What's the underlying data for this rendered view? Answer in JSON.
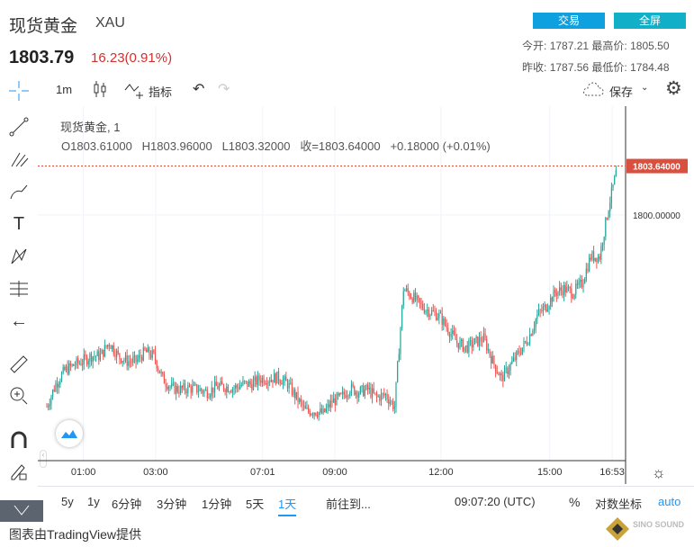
{
  "header": {
    "title": "现货黄金",
    "symbol": "XAU",
    "price": "1803.79",
    "change": "16.23(0.91%)",
    "trade_label": "交易",
    "fullscreen_label": "全屏",
    "stats": {
      "open_label": "今开:",
      "open": "1787.21",
      "high_label": "最高价:",
      "high": "1805.50",
      "prev_close_label": "昨收:",
      "prev_close": "1787.56",
      "low_label": "最低价:",
      "low": "1784.48"
    }
  },
  "toolbar": {
    "interval": "1m",
    "indicators_label": "指标",
    "save_label": "保存"
  },
  "legend": {
    "name": "现货黄金, 1",
    "o": "O1803.61000",
    "h": "H1803.96000",
    "l": "L1803.32000",
    "c": "收=1803.64000",
    "chg": "+0.18000 (+0.01%)"
  },
  "colors": {
    "up": "#26a69a",
    "down": "#ef5350",
    "last": "#d9503f",
    "accent": "#2196f3"
  },
  "chart_data": {
    "type": "candlestick",
    "title": "现货黄金, 1",
    "ylim": [
      1781.7,
      1808.1
    ],
    "y_ticks": [
      {
        "value": 1800,
        "label": "1800.00000"
      }
    ],
    "last_price": {
      "value": 1803.64,
      "label": "1803.64000"
    },
    "x_ticks": [
      {
        "pos": 4.1,
        "label": "01:00"
      },
      {
        "pos": 12.2,
        "label": "03:00"
      },
      {
        "pos": 24.2,
        "label": "07:01"
      },
      {
        "pos": 32.3,
        "label": "09:00"
      },
      {
        "pos": 44.2,
        "label": "12:00"
      },
      {
        "pos": 56.4,
        "label": "15:00"
      },
      {
        "pos": 63.4,
        "label": "16:53"
      }
    ],
    "closes": [
      1785.7,
      1787.4,
      1788.4,
      1788.8,
      1789.1,
      1789.5,
      1789.5,
      1790.5,
      1789.5,
      1789.1,
      1789.1,
      1789.8,
      1789.5,
      1787.8,
      1787.1,
      1787.0,
      1787.1,
      1787.0,
      1786.8,
      1787.2,
      1787.2,
      1787.1,
      1787.4,
      1787.4,
      1787.8,
      1787.8,
      1787.9,
      1787.4,
      1786.4,
      1785.4,
      1785.4,
      1785.2,
      1786.1,
      1786.4,
      1787.1,
      1786.8,
      1787.0,
      1786.4,
      1786.6,
      1785.7,
      1794.5,
      1793.9,
      1793.2,
      1792.8,
      1792.5,
      1791.5,
      1790.5,
      1790.1,
      1790.5,
      1790.8,
      1789.1,
      1787.8,
      1788.8,
      1789.8,
      1790.8,
      1792.5,
      1793.2,
      1794.2,
      1794.5,
      1794.2,
      1794.9,
      1796.9,
      1796.9,
      1800.6,
      1803.6
    ]
  },
  "bottom": {
    "ranges": [
      "5y",
      "1y",
      "6分钟",
      "3分钟",
      "1分钟",
      "5天",
      "1天"
    ],
    "goto": "前往到...",
    "time": "09:07:20 (UTC)",
    "percent": "%",
    "log": "对数坐标",
    "auto": "auto"
  },
  "footer": {
    "credit": "图表由TradingView提供",
    "logo_text": "SINO SOUND"
  }
}
